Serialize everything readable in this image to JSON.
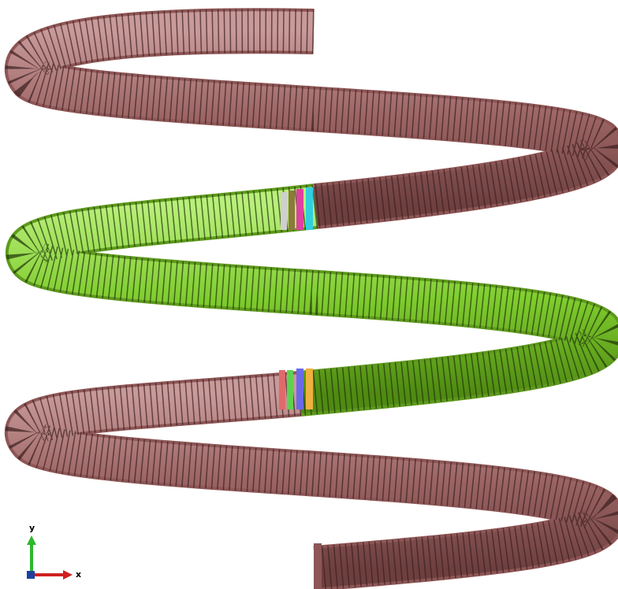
{
  "axis_triad": {
    "y_label": "y",
    "x_label": "x"
  }
}
